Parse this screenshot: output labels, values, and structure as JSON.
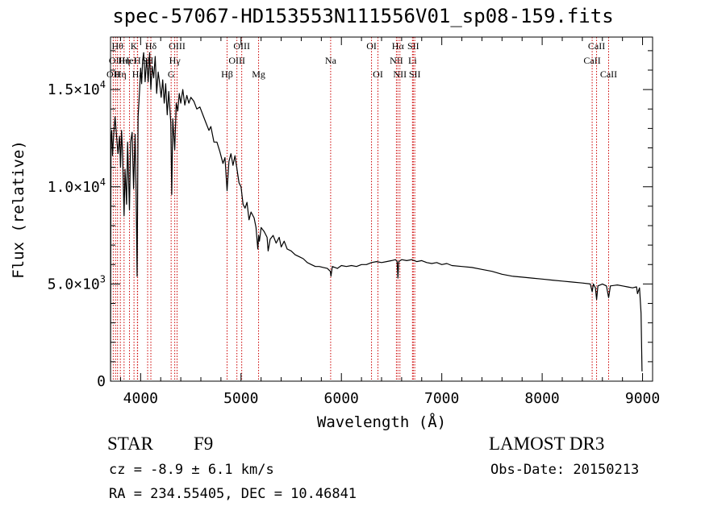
{
  "title": "spec-57067-HD153553N111556V01_sp08-159.fits",
  "footer": {
    "class": "STAR",
    "subclass": "F9",
    "survey": "LAMOST DR3",
    "cz": "cz = -8.9 ± 6.1 km/s",
    "obs_date": "Obs-Date: 20150213",
    "radec": "RA = 234.55405, DEC =  10.46841"
  },
  "chart_data": {
    "type": "line",
    "title": "spec-57067-HD153553N111556V01_sp08-159.fits",
    "xlabel": "Wavelength (Å)",
    "ylabel": "Flux (relative)",
    "xlim": [
      3700,
      9100
    ],
    "ylim": [
      0,
      17700
    ],
    "x_ticks": [
      4000,
      5000,
      6000,
      7000,
      8000,
      9000
    ],
    "x_tick_labels": [
      "4000",
      "5000",
      "6000",
      "7000",
      "8000",
      "9000"
    ],
    "y_ticks": [
      0,
      5000,
      10000,
      15000
    ],
    "y_tick_labels": [
      {
        "mantissa": "0",
        "exp": ""
      },
      {
        "mantissa": "5.0×10",
        "exp": "3"
      },
      {
        "mantissa": "1.0×10",
        "exp": "4"
      },
      {
        "mantissa": "1.5×10",
        "exp": "4"
      }
    ],
    "line_color": "#000000",
    "marker_color": "#cc0000",
    "series": [
      {
        "name": "flux",
        "points": [
          [
            3700,
            0
          ],
          [
            3705,
            12300
          ],
          [
            3712,
            12900
          ],
          [
            3720,
            11600
          ],
          [
            3730,
            12500
          ],
          [
            3745,
            13600
          ],
          [
            3760,
            12600
          ],
          [
            3775,
            11700
          ],
          [
            3790,
            12600
          ],
          [
            3800,
            11000
          ],
          [
            3810,
            12900
          ],
          [
            3820,
            11800
          ],
          [
            3835,
            8500
          ],
          [
            3845,
            10900
          ],
          [
            3860,
            9100
          ],
          [
            3870,
            12300
          ],
          [
            3889,
            8800
          ],
          [
            3900,
            12300
          ],
          [
            3915,
            12800
          ],
          [
            3930,
            9900
          ],
          [
            3945,
            12700
          ],
          [
            3955,
            9800
          ],
          [
            3965,
            5400
          ],
          [
            3975,
            13600
          ],
          [
            3990,
            15000
          ],
          [
            4000,
            16100
          ],
          [
            4010,
            15300
          ],
          [
            4020,
            16500
          ],
          [
            4030,
            16900
          ],
          [
            4045,
            15400
          ],
          [
            4060,
            16600
          ],
          [
            4075,
            15400
          ],
          [
            4090,
            16900
          ],
          [
            4102,
            15000
          ],
          [
            4115,
            16200
          ],
          [
            4130,
            15600
          ],
          [
            4145,
            16700
          ],
          [
            4160,
            14800
          ],
          [
            4175,
            15900
          ],
          [
            4190,
            15300
          ],
          [
            4205,
            14600
          ],
          [
            4220,
            15500
          ],
          [
            4235,
            14300
          ],
          [
            4250,
            15300
          ],
          [
            4265,
            13700
          ],
          [
            4280,
            14900
          ],
          [
            4300,
            13300
          ],
          [
            4310,
            9600
          ],
          [
            4320,
            13500
          ],
          [
            4340,
            11900
          ],
          [
            4355,
            14300
          ],
          [
            4370,
            13900
          ],
          [
            4385,
            14800
          ],
          [
            4400,
            14300
          ],
          [
            4420,
            15000
          ],
          [
            4440,
            14200
          ],
          [
            4460,
            14700
          ],
          [
            4480,
            14300
          ],
          [
            4500,
            14600
          ],
          [
            4530,
            14400
          ],
          [
            4560,
            14000
          ],
          [
            4590,
            14100
          ],
          [
            4620,
            13700
          ],
          [
            4650,
            13300
          ],
          [
            4680,
            12900
          ],
          [
            4700,
            13100
          ],
          [
            4730,
            12300
          ],
          [
            4760,
            12300
          ],
          [
            4790,
            11800
          ],
          [
            4820,
            11200
          ],
          [
            4840,
            11500
          ],
          [
            4861,
            9800
          ],
          [
            4880,
            11300
          ],
          [
            4900,
            11700
          ],
          [
            4920,
            11100
          ],
          [
            4940,
            11600
          ],
          [
            4960,
            10900
          ],
          [
            4980,
            10200
          ],
          [
            5000,
            10000
          ],
          [
            5020,
            9100
          ],
          [
            5040,
            8900
          ],
          [
            5060,
            9200
          ],
          [
            5080,
            8300
          ],
          [
            5100,
            8700
          ],
          [
            5130,
            8400
          ],
          [
            5150,
            7900
          ],
          [
            5167,
            6800
          ],
          [
            5175,
            7500
          ],
          [
            5183,
            7200
          ],
          [
            5200,
            7900
          ],
          [
            5230,
            7700
          ],
          [
            5260,
            7400
          ],
          [
            5270,
            6700
          ],
          [
            5290,
            7300
          ],
          [
            5320,
            7500
          ],
          [
            5350,
            7100
          ],
          [
            5380,
            7400
          ],
          [
            5400,
            6900
          ],
          [
            5430,
            7200
          ],
          [
            5460,
            6800
          ],
          [
            5500,
            6700
          ],
          [
            5540,
            6500
          ],
          [
            5580,
            6400
          ],
          [
            5620,
            6300
          ],
          [
            5660,
            6100
          ],
          [
            5700,
            6000
          ],
          [
            5740,
            5900
          ],
          [
            5780,
            5900
          ],
          [
            5820,
            5850
          ],
          [
            5860,
            5800
          ],
          [
            5890,
            5650
          ],
          [
            5896,
            5400
          ],
          [
            5910,
            5900
          ],
          [
            5960,
            5800
          ],
          [
            6000,
            5950
          ],
          [
            6050,
            5900
          ],
          [
            6100,
            5950
          ],
          [
            6150,
            5900
          ],
          [
            6200,
            6000
          ],
          [
            6250,
            6000
          ],
          [
            6300,
            6100
          ],
          [
            6350,
            6150
          ],
          [
            6400,
            6100
          ],
          [
            6450,
            6150
          ],
          [
            6500,
            6200
          ],
          [
            6540,
            6250
          ],
          [
            6555,
            6150
          ],
          [
            6563,
            5300
          ],
          [
            6571,
            6150
          ],
          [
            6600,
            6250
          ],
          [
            6650,
            6200
          ],
          [
            6700,
            6250
          ],
          [
            6750,
            6150
          ],
          [
            6800,
            6200
          ],
          [
            6850,
            6100
          ],
          [
            6900,
            6050
          ],
          [
            6950,
            6100
          ],
          [
            7000,
            6000
          ],
          [
            7050,
            6050
          ],
          [
            7100,
            5950
          ],
          [
            7200,
            5900
          ],
          [
            7300,
            5850
          ],
          [
            7400,
            5750
          ],
          [
            7500,
            5650
          ],
          [
            7600,
            5500
          ],
          [
            7700,
            5400
          ],
          [
            7800,
            5350
          ],
          [
            7900,
            5300
          ],
          [
            8000,
            5250
          ],
          [
            8100,
            5200
          ],
          [
            8200,
            5150
          ],
          [
            8300,
            5100
          ],
          [
            8400,
            5050
          ],
          [
            8480,
            5000
          ],
          [
            8498,
            4600
          ],
          [
            8510,
            5000
          ],
          [
            8530,
            4800
          ],
          [
            8542,
            4200
          ],
          [
            8555,
            4900
          ],
          [
            8600,
            5000
          ],
          [
            8640,
            4900
          ],
          [
            8662,
            4300
          ],
          [
            8680,
            4900
          ],
          [
            8750,
            4950
          ],
          [
            8800,
            4900
          ],
          [
            8850,
            4850
          ],
          [
            8900,
            4800
          ],
          [
            8940,
            4850
          ],
          [
            8950,
            4500
          ],
          [
            8970,
            4800
          ],
          [
            8985,
            3500
          ],
          [
            8995,
            500
          ]
        ]
      }
    ],
    "line_markers": [
      {
        "x": 3727,
        "label": "OII",
        "row": 2
      },
      {
        "x": 3750,
        "label": "OII",
        "row": 1
      },
      {
        "x": 3770,
        "label": "Hθ",
        "row": 0
      },
      {
        "x": 3798,
        "label": "Hη",
        "row": 2
      },
      {
        "x": 3835,
        "label": "Hη",
        "row": 1
      },
      {
        "x": 3889,
        "label": "HeI",
        "row": 1
      },
      {
        "x": 3934,
        "label": "K",
        "row": 0
      },
      {
        "x": 3968,
        "label": "H",
        "row": 1
      },
      {
        "x": 3970,
        "label": "Hε",
        "row": 2
      },
      {
        "x": 4070,
        "label": "SII",
        "row": 1
      },
      {
        "x": 4102,
        "label": "Hδ",
        "row": 0
      },
      {
        "x": 4304,
        "label": "G",
        "row": 2
      },
      {
        "x": 4340,
        "label": "Hγ",
        "row": 1
      },
      {
        "x": 4363,
        "label": "OIII",
        "row": 0
      },
      {
        "x": 4861,
        "label": "Hβ",
        "row": 2
      },
      {
        "x": 4959,
        "label": "OIII",
        "row": 1
      },
      {
        "x": 5007,
        "label": "OIII",
        "row": 0
      },
      {
        "x": 5175,
        "label": "Mg",
        "row": 2
      },
      {
        "x": 5893,
        "label": "Na",
        "row": 1
      },
      {
        "x": 6300,
        "label": "OI",
        "row": 0
      },
      {
        "x": 6364,
        "label": "OI",
        "row": 2
      },
      {
        "x": 6548,
        "label": "NII",
        "row": 1
      },
      {
        "x": 6563,
        "label": "Hα",
        "row": 0
      },
      {
        "x": 6583,
        "label": "NII",
        "row": 2
      },
      {
        "x": 6708,
        "label": "Li",
        "row": 1
      },
      {
        "x": 6716,
        "label": "SII",
        "row": 0
      },
      {
        "x": 6731,
        "label": "SII",
        "row": 2
      },
      {
        "x": 8498,
        "label": "CaII",
        "row": 1
      },
      {
        "x": 8542,
        "label": "CaII",
        "row": 0
      },
      {
        "x": 8662,
        "label": "CaII",
        "row": 2
      }
    ]
  }
}
